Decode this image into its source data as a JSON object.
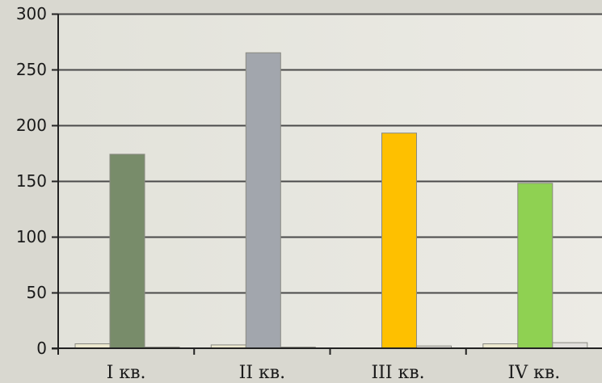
{
  "chart_data": {
    "type": "bar",
    "categories": [
      "I кв.",
      "II кв.",
      "III кв.",
      "IV кв."
    ],
    "series": [
      {
        "values": [
          4,
          3,
          0,
          4
        ],
        "color": "#ece8cf"
      },
      {
        "values": [
          174,
          265,
          193,
          148
        ],
        "colors": [
          "#788c6a",
          "#a2a6ad",
          "#fec000",
          "#8fd152"
        ]
      },
      {
        "values": [
          1,
          1,
          2,
          5
        ],
        "color": "#e1dfdb"
      }
    ],
    "yticks": [
      "0",
      "50",
      "100",
      "150",
      "200",
      "250",
      "300"
    ],
    "ylim": [
      0,
      300
    ],
    "grid": true,
    "gridline_color": "#4a4a4a",
    "background_color": "#d9d8d0",
    "plot_background_color": "#e7e6df"
  }
}
